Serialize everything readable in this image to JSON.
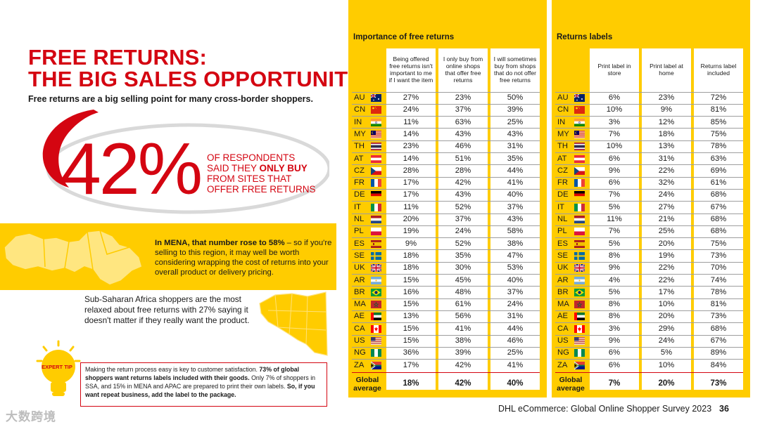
{
  "page": {
    "title_line1": "FREE RETURNS:",
    "title_line2": "THE BIG SALES OPPORTUNITY",
    "subtitle": "Free returns are a big selling point for many cross-border shoppers.",
    "big_stat": "42%",
    "stat_line1": "OF RESPONDENTS",
    "stat_line2a": "SAID THEY ",
    "stat_line2b": "ONLY BUY",
    "stat_line3": "FROM SITES THAT",
    "stat_line4": "OFFER FREE RETURNS",
    "mena_bold": "In MENA, that number rose to 58%",
    "mena_rest": " – so if you're selling to this region, it may well be worth considering wrapping the cost of returns into your overall product or delivery pricing.",
    "ssa_text": "Sub-Saharan Africa shoppers are the most relaxed about free returns with 27% saying it doesn't matter if they really want the product.",
    "tip_label": "EXPERT TIP",
    "tip_p1": "Making the return process easy is key to customer satisfaction. ",
    "tip_b1": "73% of global shoppers want returns labels included with their goods.",
    "tip_p2": " Only 7% of shoppers in SSA, and 15% in MENA and APAC are prepared to print their own labels. ",
    "tip_b2": "So, if you want repeat business, add the label to the package.",
    "watermark": "大数跨境",
    "footer": "DHL eCommerce: Global Online Shopper Survey 2023",
    "page_number": "36"
  },
  "colors": {
    "dhl_red": "#d40511",
    "dhl_yellow": "#ffcc00"
  },
  "returns_table": {
    "title": "Importance of free returns",
    "headers": [
      "Being offered free returns isn't important to me if I want the item",
      "I only buy from online shops that offer free returns",
      "I will sometimes buy from shops that do not offer free returns"
    ],
    "rows": [
      {
        "code": "AU",
        "v": [
          "27%",
          "23%",
          "50%"
        ]
      },
      {
        "code": "CN",
        "v": [
          "24%",
          "37%",
          "39%"
        ]
      },
      {
        "code": "IN",
        "v": [
          "11%",
          "63%",
          "25%"
        ]
      },
      {
        "code": "MY",
        "v": [
          "14%",
          "43%",
          "43%"
        ]
      },
      {
        "code": "TH",
        "v": [
          "23%",
          "46%",
          "31%"
        ]
      },
      {
        "code": "AT",
        "v": [
          "14%",
          "51%",
          "35%"
        ]
      },
      {
        "code": "CZ",
        "v": [
          "28%",
          "28%",
          "44%"
        ]
      },
      {
        "code": "FR",
        "v": [
          "17%",
          "42%",
          "41%"
        ]
      },
      {
        "code": "DE",
        "v": [
          "17%",
          "43%",
          "40%"
        ]
      },
      {
        "code": "IT",
        "v": [
          "11%",
          "52%",
          "37%"
        ]
      },
      {
        "code": "NL",
        "v": [
          "20%",
          "37%",
          "43%"
        ]
      },
      {
        "code": "PL",
        "v": [
          "19%",
          "24%",
          "58%"
        ]
      },
      {
        "code": "ES",
        "v": [
          "9%",
          "52%",
          "38%"
        ]
      },
      {
        "code": "SE",
        "v": [
          "18%",
          "35%",
          "47%"
        ]
      },
      {
        "code": "UK",
        "v": [
          "18%",
          "30%",
          "53%"
        ]
      },
      {
        "code": "AR",
        "v": [
          "15%",
          "45%",
          "40%"
        ]
      },
      {
        "code": "BR",
        "v": [
          "16%",
          "48%",
          "37%"
        ]
      },
      {
        "code": "MA",
        "v": [
          "15%",
          "61%",
          "24%"
        ]
      },
      {
        "code": "AE",
        "v": [
          "13%",
          "56%",
          "31%"
        ]
      },
      {
        "code": "CA",
        "v": [
          "15%",
          "41%",
          "44%"
        ]
      },
      {
        "code": "US",
        "v": [
          "15%",
          "38%",
          "46%"
        ]
      },
      {
        "code": "NG",
        "v": [
          "36%",
          "39%",
          "25%"
        ]
      },
      {
        "code": "ZA",
        "v": [
          "17%",
          "42%",
          "41%"
        ]
      }
    ],
    "avg_label_1": "Global",
    "avg_label_2": "average",
    "avg": [
      "18%",
      "42%",
      "40%"
    ]
  },
  "labels_table": {
    "title": "Returns labels",
    "headers": [
      "Print label in store",
      "Print label at home",
      "Returns label included"
    ],
    "rows": [
      {
        "code": "AU",
        "v": [
          "6%",
          "23%",
          "72%"
        ]
      },
      {
        "code": "CN",
        "v": [
          "10%",
          "9%",
          "81%"
        ]
      },
      {
        "code": "IN",
        "v": [
          "3%",
          "12%",
          "85%"
        ]
      },
      {
        "code": "MY",
        "v": [
          "7%",
          "18%",
          "75%"
        ]
      },
      {
        "code": "TH",
        "v": [
          "10%",
          "13%",
          "78%"
        ]
      },
      {
        "code": "AT",
        "v": [
          "6%",
          "31%",
          "63%"
        ]
      },
      {
        "code": "CZ",
        "v": [
          "9%",
          "22%",
          "69%"
        ]
      },
      {
        "code": "FR",
        "v": [
          "6%",
          "32%",
          "61%"
        ]
      },
      {
        "code": "DE",
        "v": [
          "7%",
          "24%",
          "68%"
        ]
      },
      {
        "code": "IT",
        "v": [
          "5%",
          "27%",
          "67%"
        ]
      },
      {
        "code": "NL",
        "v": [
          "11%",
          "21%",
          "68%"
        ]
      },
      {
        "code": "PL",
        "v": [
          "7%",
          "25%",
          "68%"
        ]
      },
      {
        "code": "ES",
        "v": [
          "5%",
          "20%",
          "75%"
        ]
      },
      {
        "code": "SE",
        "v": [
          "8%",
          "19%",
          "73%"
        ]
      },
      {
        "code": "UK",
        "v": [
          "9%",
          "22%",
          "70%"
        ]
      },
      {
        "code": "AR",
        "v": [
          "4%",
          "22%",
          "74%"
        ]
      },
      {
        "code": "BR",
        "v": [
          "5%",
          "17%",
          "78%"
        ]
      },
      {
        "code": "MA",
        "v": [
          "8%",
          "10%",
          "81%"
        ]
      },
      {
        "code": "AE",
        "v": [
          "8%",
          "20%",
          "73%"
        ]
      },
      {
        "code": "CA",
        "v": [
          "3%",
          "29%",
          "68%"
        ]
      },
      {
        "code": "US",
        "v": [
          "9%",
          "24%",
          "67%"
        ]
      },
      {
        "code": "NG",
        "v": [
          "6%",
          "5%",
          "89%"
        ]
      },
      {
        "code": "ZA",
        "v": [
          "6%",
          "10%",
          "84%"
        ]
      }
    ],
    "avg_label_1": "Global",
    "avg_label_2": "average",
    "avg": [
      "7%",
      "20%",
      "73%"
    ]
  }
}
